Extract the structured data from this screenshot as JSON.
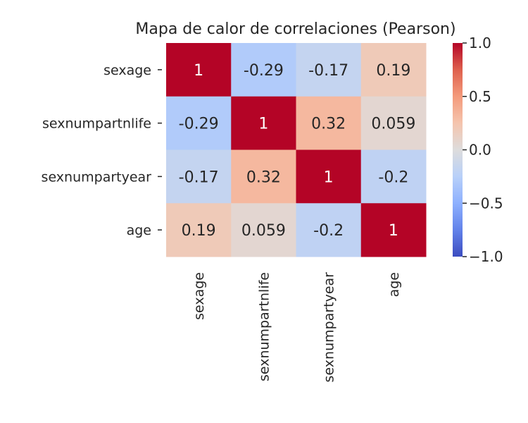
{
  "chart_data": {
    "type": "heatmap",
    "title": "Mapa de calor de correlaciones (Pearson)",
    "rows": [
      "sexage",
      "sexnumpartnlife",
      "sexnumpartyear",
      "age"
    ],
    "columns": [
      "sexage",
      "sexnumpartnlife",
      "sexnumpartyear",
      "age"
    ],
    "values": [
      [
        1,
        -0.29,
        -0.17,
        0.19
      ],
      [
        -0.29,
        1,
        0.32,
        0.059
      ],
      [
        -0.17,
        0.32,
        1,
        -0.2
      ],
      [
        0.19,
        0.059,
        -0.2,
        1
      ]
    ],
    "value_labels": [
      [
        "1",
        "-0.29",
        "-0.17",
        "0.19"
      ],
      [
        "-0.29",
        "1",
        "0.32",
        "0.059"
      ],
      [
        "-0.17",
        "0.32",
        "1",
        "-0.2"
      ],
      [
        "0.19",
        "0.059",
        "-0.2",
        "1"
      ]
    ],
    "colormap": "coolwarm",
    "vmin": -1,
    "vmax": 1,
    "colorbar_ticks": [
      1.0,
      0.5,
      0.0,
      -0.5,
      -1.0
    ],
    "colorbar_tick_labels": [
      "1.0",
      "0.5",
      "0.0",
      "−0.5",
      "−1.0"
    ],
    "colors": {
      "low": "#3b4cc0",
      "mid": "#dddcdc",
      "high": "#b40426",
      "text_dark": "#262626",
      "text_light": "#ffffff"
    },
    "grid": false
  }
}
